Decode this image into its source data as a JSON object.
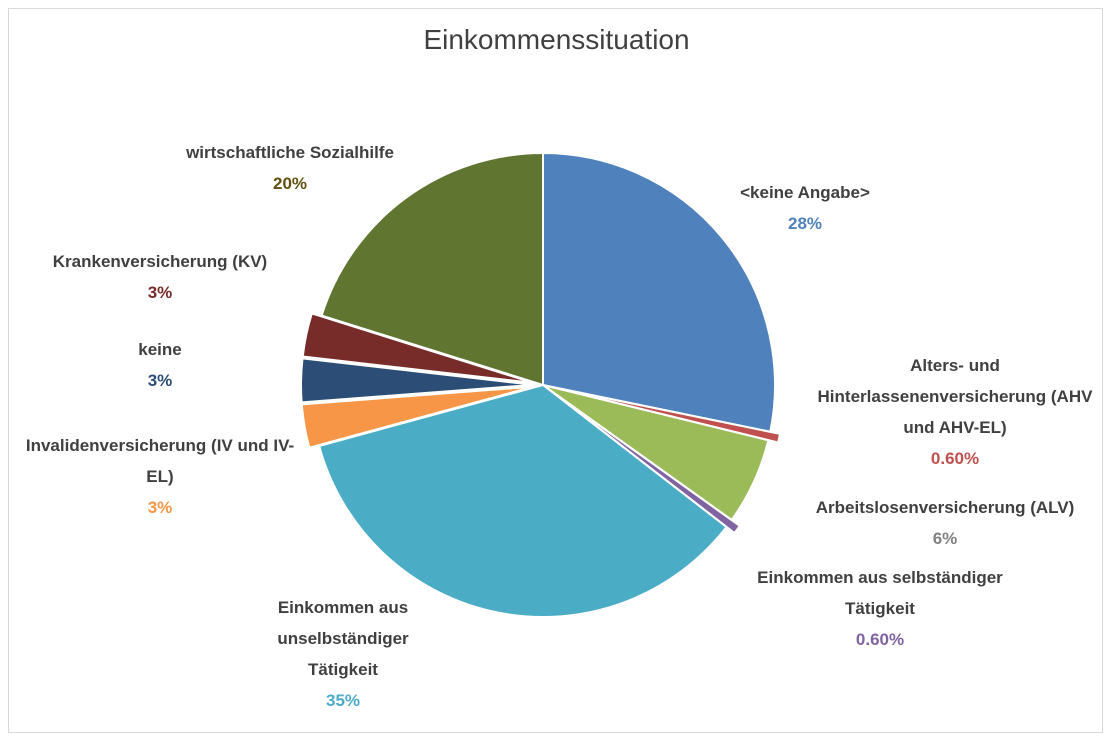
{
  "chart_data": {
    "type": "pie",
    "title": "Einkommenssituation",
    "categories": [
      "<keine Angabe>",
      "Alters- und Hinterlassenenversicherung (AHV und AHV-EL)",
      "Arbeitslosenversicherung (ALV)",
      "Einkommen aus selbständiger Tätigkeit",
      "Einkommen aus unselbständiger Tätigkeit",
      "Invalidenversicherung (IV und IV-EL)",
      "keine",
      "Krankenversicherung (KV)",
      "wirtschaftliche Sozialhilfe"
    ],
    "values": [
      28,
      0.6,
      6,
      0.6,
      35,
      3,
      3,
      3,
      20
    ],
    "value_labels": [
      "28%",
      "0.60%",
      "6%",
      "0.60%",
      "35%",
      "3%",
      "3%",
      "3%",
      "20%"
    ],
    "colors": [
      "#4f81bd",
      "#c0504d",
      "#9bbb59",
      "#8064a2",
      "#4bacc6",
      "#f79646",
      "#2c4d75",
      "#772c2a",
      "#5f7530"
    ],
    "label_colors": [
      "#4f81bd",
      "#c0504d",
      "#808080",
      "#8064a2",
      "#4bacc6",
      "#f79646",
      "#2c4d75",
      "#772c2a",
      "#5f5010"
    ],
    "exploded": [
      false,
      true,
      false,
      true,
      false,
      true,
      true,
      true,
      false
    ]
  }
}
